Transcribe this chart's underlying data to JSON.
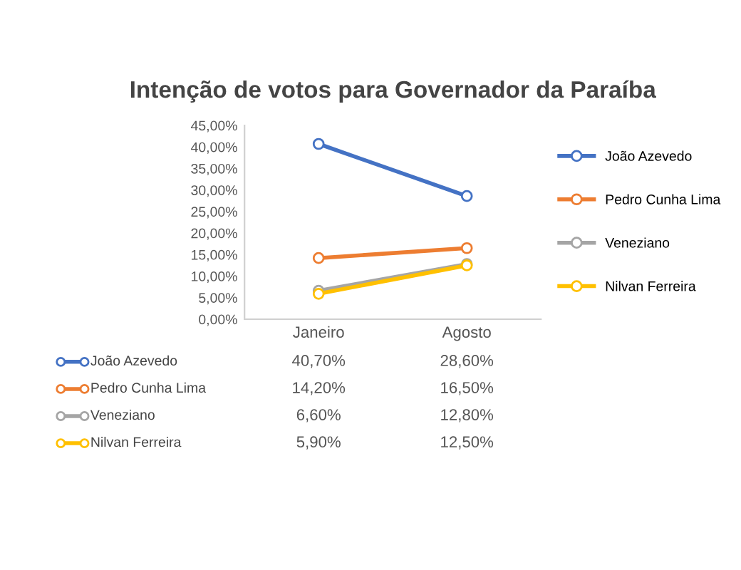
{
  "chart_data": {
    "type": "line",
    "title": "Intenção de votos para Governador da Paraíba",
    "categories": [
      "Janeiro",
      "Agosto"
    ],
    "series": [
      {
        "name": "João Azevedo",
        "color": "#4472c4",
        "values": [
          40.7,
          28.6
        ],
        "value_labels": [
          "40,70%",
          "28,60%"
        ]
      },
      {
        "name": "Pedro Cunha Lima",
        "color": "#ed7d31",
        "values": [
          14.2,
          16.5
        ],
        "value_labels": [
          "14,20%",
          "16,50%"
        ]
      },
      {
        "name": "Veneziano",
        "color": "#a5a5a5",
        "values": [
          6.6,
          12.8
        ],
        "value_labels": [
          "6,60%",
          "12,80%"
        ]
      },
      {
        "name": "Nilvan Ferreira",
        "color": "#ffc000",
        "values": [
          5.9,
          12.5
        ],
        "value_labels": [
          "5,90%",
          "12,50%"
        ]
      }
    ],
    "ylim": [
      0,
      45
    ],
    "yticks": [
      {
        "value": 0,
        "label": "0,00%"
      },
      {
        "value": 5,
        "label": "5,00%"
      },
      {
        "value": 10,
        "label": "10,00%"
      },
      {
        "value": 15,
        "label": "15,00%"
      },
      {
        "value": 20,
        "label": "20,00%"
      },
      {
        "value": 25,
        "label": "25,00%"
      },
      {
        "value": 30,
        "label": "30,00%"
      },
      {
        "value": 35,
        "label": "35,00%"
      },
      {
        "value": 40,
        "label": "40,00%"
      },
      {
        "value": 45,
        "label": "45,00%"
      }
    ],
    "grid": false,
    "legend": "right",
    "marker": "circle",
    "line_style": "solid"
  }
}
